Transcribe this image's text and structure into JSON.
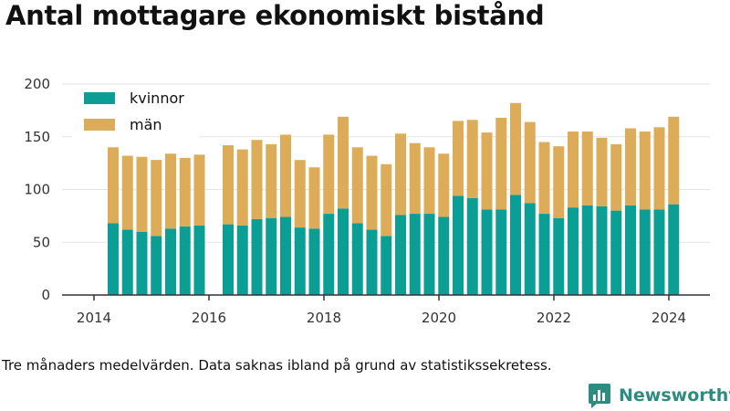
{
  "title": "Antal mottagare ekonomiskt bistånd",
  "caption": "Tre månaders medelvärden. Data saknas ibland på grund av statistikssekretess.",
  "brand": "Newsworthy",
  "colors": {
    "kvinnor": "#0a9e94",
    "man": "#dcac58",
    "grid": "#e3e3e3",
    "axis": "#333333",
    "brand": "#2e8b7f"
  },
  "chart_data": {
    "type": "bar",
    "stacked": true,
    "x_ticks": [
      "2014",
      "2016",
      "2018",
      "2020",
      "2022",
      "2024"
    ],
    "y_ticks": [
      0,
      50,
      100,
      150,
      200
    ],
    "ylim": [
      0,
      200
    ],
    "grid": true,
    "legend_position": "top-left",
    "x": [
      "2014-05",
      "2014-08",
      "2014-11",
      "2015-02",
      "2015-05",
      "2015-08",
      "2015-11",
      "2016-02",
      "2016-05",
      "2016-08",
      "2016-11",
      "2017-02",
      "2017-05",
      "2017-08",
      "2017-11",
      "2018-02",
      "2018-05",
      "2018-08",
      "2018-11",
      "2019-02",
      "2019-05",
      "2019-08",
      "2019-11",
      "2020-02",
      "2020-05",
      "2020-08",
      "2020-11",
      "2021-02",
      "2021-05",
      "2021-08",
      "2021-11",
      "2022-02",
      "2022-05",
      "2022-08",
      "2022-11",
      "2023-02",
      "2023-05",
      "2023-08",
      "2023-11",
      "2024-02"
    ],
    "series": [
      {
        "name": "kvinnor",
        "values": [
          68,
          62,
          60,
          56,
          63,
          65,
          66,
          null,
          67,
          66,
          72,
          73,
          74,
          64,
          63,
          77,
          82,
          68,
          62,
          56,
          76,
          77,
          77,
          74,
          94,
          92,
          81,
          81,
          95,
          87,
          77,
          73,
          83,
          85,
          84,
          80,
          85,
          81,
          81,
          86
        ]
      },
      {
        "name": "män",
        "values": [
          72,
          70,
          71,
          72,
          71,
          65,
          67,
          null,
          75,
          72,
          75,
          70,
          78,
          64,
          58,
          75,
          87,
          72,
          70,
          68,
          77,
          67,
          63,
          60,
          71,
          74,
          73,
          87,
          87,
          77,
          68,
          68,
          72,
          70,
          65,
          63,
          73,
          74,
          78,
          83
        ]
      }
    ]
  }
}
